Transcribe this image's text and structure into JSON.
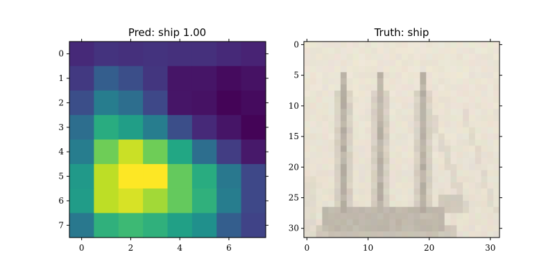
{
  "chart_data": [
    {
      "type": "heatmap",
      "title": "Pred: ship 1.00",
      "colormap": "viridis",
      "xlim": [
        -0.5,
        7.5
      ],
      "ylim": [
        7.5,
        -0.5
      ],
      "xticks": [
        "0",
        "2",
        "4",
        "6"
      ],
      "yticks": [
        "0",
        "1",
        "2",
        "3",
        "4",
        "5",
        "6",
        "7"
      ],
      "values": [
        [
          0.12,
          0.15,
          0.14,
          0.15,
          0.14,
          0.14,
          0.12,
          0.1
        ],
        [
          0.17,
          0.3,
          0.24,
          0.16,
          0.06,
          0.06,
          0.03,
          0.05
        ],
        [
          0.24,
          0.42,
          0.36,
          0.22,
          0.06,
          0.05,
          0.01,
          0.03
        ],
        [
          0.36,
          0.62,
          0.56,
          0.42,
          0.24,
          0.12,
          0.06,
          0.01
        ],
        [
          0.42,
          0.78,
          0.92,
          0.78,
          0.6,
          0.36,
          0.18,
          0.07
        ],
        [
          0.54,
          0.9,
          1.0,
          1.0,
          0.76,
          0.62,
          0.4,
          0.22
        ],
        [
          0.55,
          0.9,
          0.94,
          0.86,
          0.76,
          0.64,
          0.42,
          0.22
        ],
        [
          0.4,
          0.64,
          0.68,
          0.64,
          0.57,
          0.5,
          0.3,
          0.2
        ]
      ]
    },
    {
      "type": "heatmap",
      "title": "Truth: ship",
      "xlim": [
        -0.5,
        31.5
      ],
      "ylim": [
        31.5,
        -0.5
      ],
      "xticks": [
        "0",
        "10",
        "20",
        "30"
      ],
      "yticks": [
        "0",
        "5",
        "10",
        "15",
        "20",
        "25",
        "30"
      ]
    }
  ],
  "colors": {
    "paper": "#ebe4d4",
    "mast": "#8f8a84",
    "hull": "#9a9388"
  }
}
